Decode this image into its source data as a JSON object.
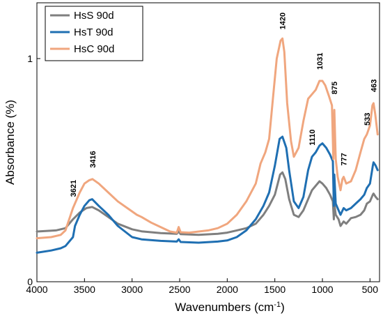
{
  "chart_data": {
    "type": "line",
    "xlabel": "Wavenumbers (cm",
    "xlabel_sup": "-1",
    "xlabel_end": ")",
    "ylabel": "Absorbance (%)",
    "xlim": [
      4000,
      400
    ],
    "ylim": [
      0,
      1.25
    ],
    "x_ticks": [
      4000,
      3500,
      3000,
      2500,
      2000,
      1500,
      1000,
      500
    ],
    "x_tick_labels": [
      "4000",
      "3500",
      "3000",
      "2500",
      "2000",
      "1500",
      "1000",
      "500"
    ],
    "y_ticks": [
      0,
      1
    ],
    "y_tick_labels": [
      "0",
      "1"
    ],
    "legend_position": "top-left",
    "series": [
      {
        "name": "HsS 90d",
        "color": "#7f7f7f",
        "points": [
          [
            4000,
            0.225
          ],
          [
            3800,
            0.23
          ],
          [
            3700,
            0.24
          ],
          [
            3621,
            0.28
          ],
          [
            3550,
            0.31
          ],
          [
            3480,
            0.33
          ],
          [
            3420,
            0.335
          ],
          [
            3350,
            0.32
          ],
          [
            3250,
            0.29
          ],
          [
            3150,
            0.26
          ],
          [
            3000,
            0.235
          ],
          [
            2900,
            0.226
          ],
          [
            2700,
            0.218
          ],
          [
            2530,
            0.215
          ],
          [
            2510,
            0.225
          ],
          [
            2490,
            0.213
          ],
          [
            2300,
            0.21
          ],
          [
            2100,
            0.215
          ],
          [
            2000,
            0.22
          ],
          [
            1900,
            0.23
          ],
          [
            1800,
            0.24
          ],
          [
            1700,
            0.26
          ],
          [
            1620,
            0.3
          ],
          [
            1560,
            0.34
          ],
          [
            1500,
            0.39
          ],
          [
            1445,
            0.48
          ],
          [
            1420,
            0.49
          ],
          [
            1390,
            0.46
          ],
          [
            1350,
            0.37
          ],
          [
            1300,
            0.3
          ],
          [
            1250,
            0.29
          ],
          [
            1200,
            0.32
          ],
          [
            1150,
            0.37
          ],
          [
            1110,
            0.41
          ],
          [
            1070,
            0.43
          ],
          [
            1031,
            0.45
          ],
          [
            1000,
            0.44
          ],
          [
            960,
            0.42
          ],
          [
            920,
            0.39
          ],
          [
            890,
            0.36
          ],
          [
            880,
            0.28
          ],
          [
            875,
            0.35
          ],
          [
            860,
            0.3
          ],
          [
            830,
            0.28
          ],
          [
            810,
            0.25
          ],
          [
            777,
            0.27
          ],
          [
            750,
            0.26
          ],
          [
            700,
            0.285
          ],
          [
            650,
            0.29
          ],
          [
            600,
            0.3
          ],
          [
            560,
            0.32
          ],
          [
            533,
            0.35
          ],
          [
            500,
            0.36
          ],
          [
            470,
            0.39
          ],
          [
            463,
            0.395
          ],
          [
            440,
            0.38
          ],
          [
            420,
            0.37
          ]
        ]
      },
      {
        "name": "HsT 90d",
        "color": "#1f6fb2",
        "points": [
          [
            4000,
            0.13
          ],
          [
            3850,
            0.14
          ],
          [
            3750,
            0.15
          ],
          [
            3700,
            0.16
          ],
          [
            3621,
            0.2
          ],
          [
            3600,
            0.25
          ],
          [
            3550,
            0.3
          ],
          [
            3500,
            0.34
          ],
          [
            3450,
            0.365
          ],
          [
            3420,
            0.37
          ],
          [
            3350,
            0.34
          ],
          [
            3250,
            0.3
          ],
          [
            3150,
            0.25
          ],
          [
            3000,
            0.2
          ],
          [
            2900,
            0.19
          ],
          [
            2700,
            0.183
          ],
          [
            2530,
            0.18
          ],
          [
            2510,
            0.19
          ],
          [
            2490,
            0.178
          ],
          [
            2300,
            0.175
          ],
          [
            2100,
            0.18
          ],
          [
            2000,
            0.185
          ],
          [
            1900,
            0.2
          ],
          [
            1800,
            0.23
          ],
          [
            1700,
            0.28
          ],
          [
            1620,
            0.34
          ],
          [
            1560,
            0.4
          ],
          [
            1500,
            0.52
          ],
          [
            1450,
            0.64
          ],
          [
            1420,
            0.65
          ],
          [
            1380,
            0.6
          ],
          [
            1350,
            0.5
          ],
          [
            1300,
            0.36
          ],
          [
            1250,
            0.33
          ],
          [
            1200,
            0.38
          ],
          [
            1150,
            0.5
          ],
          [
            1110,
            0.56
          ],
          [
            1070,
            0.58
          ],
          [
            1031,
            0.61
          ],
          [
            1000,
            0.62
          ],
          [
            960,
            0.6
          ],
          [
            920,
            0.57
          ],
          [
            890,
            0.54
          ],
          [
            880,
            0.34
          ],
          [
            875,
            0.48
          ],
          [
            860,
            0.35
          ],
          [
            830,
            0.32
          ],
          [
            810,
            0.3
          ],
          [
            777,
            0.33
          ],
          [
            750,
            0.32
          ],
          [
            700,
            0.33
          ],
          [
            650,
            0.35
          ],
          [
            600,
            0.37
          ],
          [
            560,
            0.39
          ],
          [
            533,
            0.42
          ],
          [
            500,
            0.44
          ],
          [
            470,
            0.52
          ],
          [
            463,
            0.535
          ],
          [
            440,
            0.52
          ],
          [
            420,
            0.5
          ]
        ]
      },
      {
        "name": "HsC 90d",
        "color": "#f0a67e",
        "points": [
          [
            4000,
            0.195
          ],
          [
            3850,
            0.2
          ],
          [
            3750,
            0.21
          ],
          [
            3700,
            0.23
          ],
          [
            3621,
            0.33
          ],
          [
            3550,
            0.4
          ],
          [
            3500,
            0.44
          ],
          [
            3450,
            0.455
          ],
          [
            3416,
            0.46
          ],
          [
            3350,
            0.44
          ],
          [
            3250,
            0.4
          ],
          [
            3150,
            0.36
          ],
          [
            3050,
            0.33
          ],
          [
            2950,
            0.3
          ],
          [
            2900,
            0.29
          ],
          [
            2800,
            0.265
          ],
          [
            2700,
            0.245
          ],
          [
            2600,
            0.225
          ],
          [
            2530,
            0.22
          ],
          [
            2510,
            0.245
          ],
          [
            2490,
            0.222
          ],
          [
            2400,
            0.22
          ],
          [
            2200,
            0.23
          ],
          [
            2100,
            0.24
          ],
          [
            2000,
            0.26
          ],
          [
            1900,
            0.3
          ],
          [
            1800,
            0.36
          ],
          [
            1700,
            0.44
          ],
          [
            1650,
            0.53
          ],
          [
            1600,
            0.58
          ],
          [
            1560,
            0.64
          ],
          [
            1520,
            0.82
          ],
          [
            1480,
            1.0
          ],
          [
            1440,
            1.08
          ],
          [
            1420,
            1.09
          ],
          [
            1400,
            1.03
          ],
          [
            1370,
            0.8
          ],
          [
            1330,
            0.63
          ],
          [
            1300,
            0.56
          ],
          [
            1250,
            0.6
          ],
          [
            1200,
            0.72
          ],
          [
            1150,
            0.82
          ],
          [
            1110,
            0.84
          ],
          [
            1070,
            0.86
          ],
          [
            1031,
            0.9
          ],
          [
            1000,
            0.9
          ],
          [
            970,
            0.88
          ],
          [
            930,
            0.83
          ],
          [
            900,
            0.79
          ],
          [
            885,
            0.55
          ],
          [
            875,
            0.77
          ],
          [
            860,
            0.55
          ],
          [
            840,
            0.47
          ],
          [
            810,
            0.41
          ],
          [
            790,
            0.46
          ],
          [
            777,
            0.47
          ],
          [
            750,
            0.44
          ],
          [
            700,
            0.45
          ],
          [
            650,
            0.5
          ],
          [
            600,
            0.58
          ],
          [
            560,
            0.64
          ],
          [
            533,
            0.66
          ],
          [
            500,
            0.7
          ],
          [
            475,
            0.79
          ],
          [
            463,
            0.8
          ],
          [
            445,
            0.75
          ],
          [
            420,
            0.66
          ]
        ]
      }
    ],
    "annotations": [
      {
        "label": "3621",
        "x": 3621,
        "y": 0.38
      },
      {
        "label": "3416",
        "x": 3416,
        "y": 0.51
      },
      {
        "label": "1420",
        "x": 1420,
        "y": 1.13
      },
      {
        "label": "1110",
        "x": 1110,
        "y": 0.61
      },
      {
        "label": "1031",
        "x": 1031,
        "y": 0.95
      },
      {
        "label": "875",
        "x": 875,
        "y": 0.84
      },
      {
        "label": "777",
        "x": 777,
        "y": 0.52
      },
      {
        "label": "533",
        "x": 533,
        "y": 0.7
      },
      {
        "label": "463",
        "x": 463,
        "y": 0.85
      }
    ]
  }
}
